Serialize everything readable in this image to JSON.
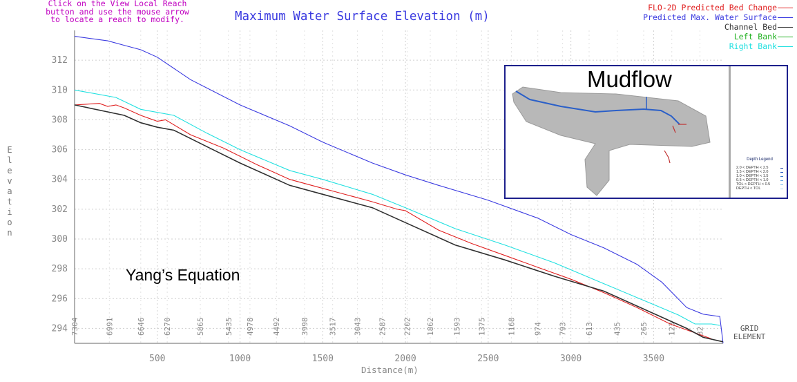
{
  "instructions": "Click on the View Local Reach\nbutton and use the mouse arrow\nto locate a reach to modify.",
  "legend": [
    {
      "label": "FLO-2D Predicted Bed Change",
      "color": "#e02020"
    },
    {
      "label": "Predicted Max. Water Surface",
      "color": "#3a3ae0"
    },
    {
      "label": "Channel Bed",
      "color": "#303030"
    },
    {
      "label": "Left Bank",
      "color": "#20b020"
    },
    {
      "label": "Right Bank",
      "color": "#20e0e0"
    }
  ],
  "annotation": "Yang’s Equation",
  "grid_element_label": "GRID\nELEMENT",
  "inset": {
    "title": "Mudflow",
    "depth_legend_title": "Depth Legend",
    "depth_legend": [
      {
        "label": "2.0 < DEPTH < 2.5",
        "color": "#1a3aa0"
      },
      {
        "label": "1.5 < DEPTH < 2.0",
        "color": "#2255c0"
      },
      {
        "label": "1.0 < DEPTH < 1.5",
        "color": "#3a7ad0"
      },
      {
        "label": "0.5 < DEPTH < 1.0",
        "color": "#5aa0e0"
      },
      {
        "label": "TOL < DEPTH < 0.5",
        "color": "#80c0f0"
      },
      {
        "label": "DEPTH < TOL",
        "color": "#b0d8f8"
      }
    ]
  },
  "chart_data": {
    "type": "line",
    "title": "Maximum Water Surface Elevation (m)",
    "xlabel": "Distance(m)",
    "ylabel": "Elevation",
    "xlim": [
      0,
      3920
    ],
    "ylim": [
      293,
      314
    ],
    "xticks": [
      500,
      1000,
      1500,
      2000,
      2500,
      3000,
      3500
    ],
    "yticks": [
      294,
      296,
      298,
      300,
      302,
      304,
      306,
      308,
      310,
      312
    ],
    "grid": true,
    "legend_position": "top-right",
    "grid_elements": [
      {
        "label": "7304",
        "x": 0
      },
      {
        "label": "6991",
        "x": 210
      },
      {
        "label": "6646",
        "x": 400
      },
      {
        "label": "6270",
        "x": 560
      },
      {
        "label": "5865",
        "x": 760
      },
      {
        "label": "5435",
        "x": 930
      },
      {
        "label": "4978",
        "x": 1060
      },
      {
        "label": "4492",
        "x": 1220
      },
      {
        "label": "3998",
        "x": 1390
      },
      {
        "label": "3517",
        "x": 1560
      },
      {
        "label": "3043",
        "x": 1710
      },
      {
        "label": "2587",
        "x": 1860
      },
      {
        "label": "2202",
        "x": 2010
      },
      {
        "label": "1862",
        "x": 2150
      },
      {
        "label": "1593",
        "x": 2310
      },
      {
        "label": "1375",
        "x": 2460
      },
      {
        "label": "1168",
        "x": 2640
      },
      {
        "label": "974",
        "x": 2800
      },
      {
        "label": "793",
        "x": 2950
      },
      {
        "label": "613",
        "x": 3110
      },
      {
        "label": "435",
        "x": 3280
      },
      {
        "label": "265",
        "x": 3440
      },
      {
        "label": "123",
        "x": 3610
      },
      {
        "label": "32",
        "x": 3780
      }
    ],
    "series": [
      {
        "name": "Predicted Max. Water Surface",
        "color": "#3a3ae0",
        "x": [
          0,
          200,
          300,
          400,
          500,
          700,
          1000,
          1300,
          1500,
          1800,
          2000,
          2200,
          2500,
          2800,
          3000,
          3200,
          3400,
          3550,
          3700,
          3800,
          3900,
          3920
        ],
        "y": [
          313.6,
          313.3,
          313.0,
          312.7,
          312.2,
          310.7,
          309.0,
          307.6,
          306.5,
          305.1,
          304.3,
          303.6,
          302.6,
          301.4,
          300.3,
          299.4,
          298.3,
          297.1,
          295.4,
          294.95,
          294.8,
          293.0
        ]
      },
      {
        "name": "Right Bank",
        "color": "#20e0e0",
        "x": [
          0,
          250,
          400,
          600,
          800,
          1000,
          1300,
          1500,
          1800,
          2000,
          2300,
          2600,
          2900,
          3200,
          3500,
          3650,
          3750,
          3850,
          3900
        ],
        "y": [
          310.0,
          309.5,
          308.7,
          308.3,
          307.1,
          306.0,
          304.6,
          304.0,
          303.0,
          302.1,
          300.7,
          299.6,
          298.4,
          297.0,
          295.6,
          294.9,
          294.3,
          294.3,
          294.2
        ]
      },
      {
        "name": "FLO-2D Predicted Bed Change",
        "color": "#e02020",
        "x": [
          0,
          150,
          200,
          250,
          300,
          400,
          450,
          500,
          550,
          700,
          900,
          1100,
          1300,
          1500,
          1600,
          1800,
          1950,
          2000,
          2200,
          2400,
          2600,
          2800,
          3000,
          3200,
          3400,
          3600,
          3750,
          3850
        ],
        "y": [
          309.0,
          309.1,
          308.9,
          309.0,
          308.8,
          308.3,
          308.1,
          307.9,
          308.0,
          307.0,
          306.1,
          305.0,
          304.0,
          303.4,
          303.1,
          302.5,
          302.0,
          301.9,
          300.6,
          299.7,
          298.9,
          298.1,
          297.3,
          296.4,
          295.4,
          294.3,
          293.7,
          293.3
        ]
      },
      {
        "name": "Channel Bed",
        "color": "#303030",
        "x": [
          0,
          300,
          400,
          500,
          600,
          800,
          1000,
          1300,
          1500,
          1800,
          2000,
          2300,
          2600,
          2900,
          3200,
          3500,
          3700,
          3800,
          3920
        ],
        "y": [
          309.0,
          308.3,
          307.8,
          307.5,
          307.3,
          306.2,
          305.1,
          303.6,
          303.0,
          302.1,
          301.1,
          299.6,
          298.6,
          297.5,
          296.5,
          295.0,
          294.0,
          293.4,
          293.1
        ]
      }
    ]
  }
}
